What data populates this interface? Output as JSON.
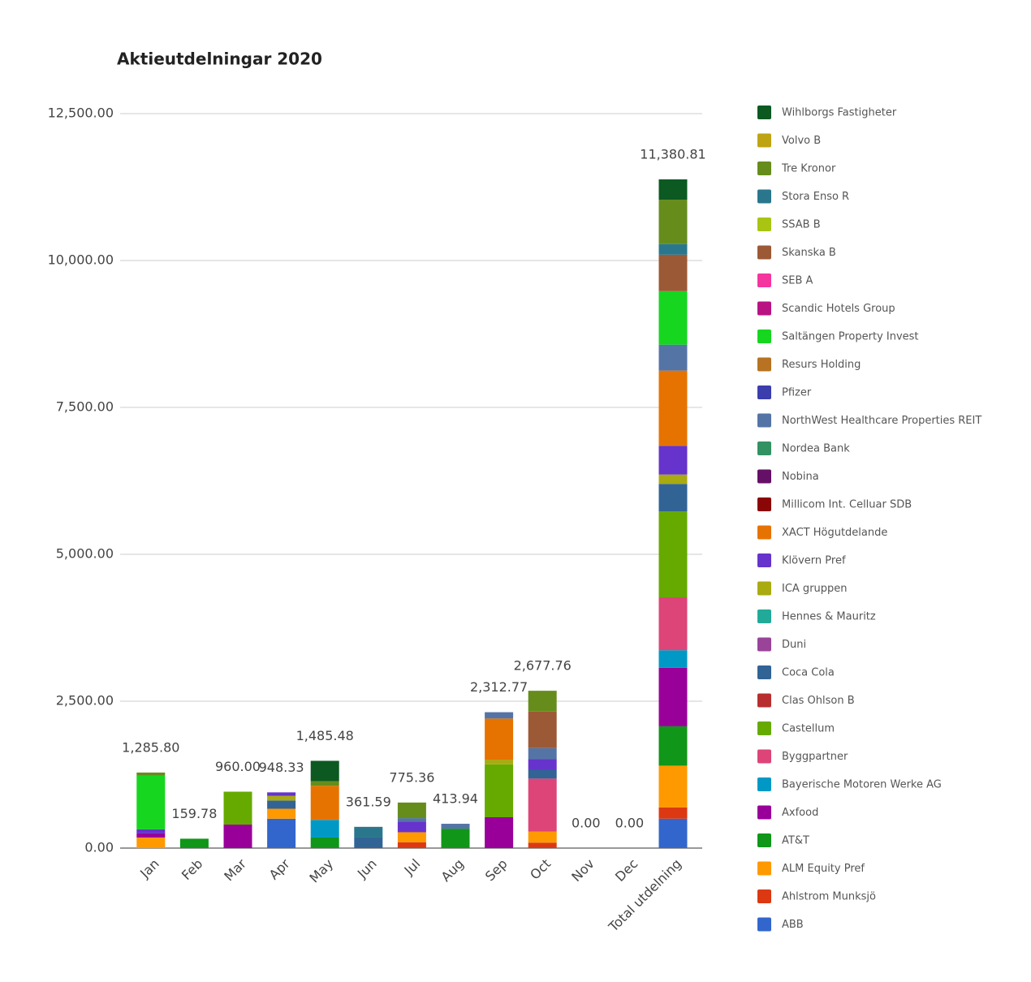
{
  "chart_data": {
    "type": "stacked_bar",
    "title": "Aktieutdelningar 2020",
    "categories": [
      "Jan",
      "Feb",
      "Mar",
      "Apr",
      "May",
      "Jun",
      "Jul",
      "Aug",
      "Sep",
      "Oct",
      "Nov",
      "Dec",
      "Total utdelning"
    ],
    "ylim": [
      0,
      12500
    ],
    "yticks": [
      {
        "value": 0,
        "label": "0.00"
      },
      {
        "value": 2500,
        "label": "2,500.00"
      },
      {
        "value": 5000,
        "label": "5,000.00"
      },
      {
        "value": 7500,
        "label": "7,500.00"
      },
      {
        "value": 10000,
        "label": "10,000.00"
      },
      {
        "value": 12500,
        "label": "12,500.00"
      }
    ],
    "grid": true,
    "legend": "right",
    "totals": [
      1285.8,
      159.78,
      960,
      948.33,
      1485.48,
      361.59,
      775.36,
      413.94,
      2312.77,
      2677.76,
      0,
      0,
      11380.81
    ],
    "total_labels": [
      "1,285.80",
      "159.78",
      "960.00",
      "948.33",
      "1,485.48",
      "361.59",
      "775.36",
      "413.94",
      "2,312.77",
      "2,677.76",
      "0.00",
      "0.00",
      "11,380.81"
    ],
    "series": [
      {
        "name": "ABB",
        "color": "#3366cc",
        "values": [
          0,
          0,
          0,
          500,
          0,
          0,
          0,
          0,
          0,
          0,
          0,
          0,
          500
        ]
      },
      {
        "name": "Ahlstrom Munksjö",
        "color": "#dc3912",
        "values": [
          0,
          0,
          0,
          0,
          0,
          0,
          100,
          0,
          0,
          93,
          0,
          0,
          193
        ]
      },
      {
        "name": "ALM Equity Pref",
        "color": "#ff9900",
        "values": [
          180,
          0,
          0,
          170,
          0,
          0,
          170,
          0,
          0,
          190,
          0,
          0,
          710
        ]
      },
      {
        "name": "AT&T",
        "color": "#109618",
        "values": [
          0,
          159.78,
          0,
          0,
          180,
          0,
          0,
          330,
          0,
          0,
          0,
          0,
          669.78
        ]
      },
      {
        "name": "Axfood",
        "color": "#990099",
        "values": [
          70,
          0,
          400,
          0,
          0,
          0,
          0,
          0,
          525,
          0,
          0,
          0,
          995
        ]
      },
      {
        "name": "Bayerische Motoren Werke AG",
        "color": "#0099c6",
        "values": [
          0,
          0,
          0,
          0,
          300,
          0,
          0,
          0,
          0,
          0,
          0,
          0,
          300
        ]
      },
      {
        "name": "Byggpartner",
        "color": "#dd4477",
        "values": [
          0,
          0,
          0,
          0,
          0,
          0,
          0,
          0,
          0,
          900,
          0,
          0,
          900
        ]
      },
      {
        "name": "Castellum",
        "color": "#66aa00",
        "values": [
          0,
          0,
          560,
          0,
          0,
          0,
          0,
          0,
          900,
          0,
          0,
          0,
          1460
        ]
      },
      {
        "name": "Clas Ohlson B",
        "color": "#b82e2e",
        "values": [
          0,
          0,
          0,
          0,
          0,
          0,
          0,
          0,
          0,
          0,
          0,
          0,
          0
        ]
      },
      {
        "name": "Coca Cola",
        "color": "#316395",
        "values": [
          0,
          0,
          0,
          140,
          0,
          180,
          0,
          0,
          0,
          150,
          0,
          0,
          470
        ]
      },
      {
        "name": "Duni",
        "color": "#994499",
        "values": [
          0,
          0,
          0,
          0,
          0,
          0,
          0,
          0,
          0,
          0,
          0,
          0,
          0
        ]
      },
      {
        "name": "Hennes & Mauritz",
        "color": "#22aa99",
        "values": [
          0,
          0,
          0,
          0,
          0,
          0,
          0,
          0,
          0,
          0,
          0,
          0,
          0
        ]
      },
      {
        "name": "ICA gruppen",
        "color": "#aaaa11",
        "values": [
          0,
          0,
          0,
          80,
          0,
          0,
          0,
          0,
          80,
          0,
          0,
          0,
          160
        ]
      },
      {
        "name": "Klövern Pref",
        "color": "#6633cc",
        "values": [
          70,
          0,
          0,
          58.33,
          0,
          0,
          180,
          0,
          0,
          180,
          0,
          0,
          488.33
        ]
      },
      {
        "name": "XACT Högutdelande",
        "color": "#e67300",
        "values": [
          0,
          0,
          0,
          0,
          580,
          0,
          0,
          0,
          700,
          0,
          0,
          0,
          1280
        ]
      },
      {
        "name": "Millicom Int. Celluar SDB",
        "color": "#8b0707",
        "values": [
          0,
          0,
          0,
          0,
          0,
          0,
          0,
          0,
          0,
          0,
          0,
          0,
          0
        ]
      },
      {
        "name": "Nobina",
        "color": "#651067",
        "values": [
          0,
          0,
          0,
          0,
          0,
          0,
          0,
          0,
          0,
          0,
          0,
          0,
          0
        ]
      },
      {
        "name": "Nordea Bank",
        "color": "#329262",
        "values": [
          0,
          0,
          0,
          0,
          0,
          0,
          0,
          0,
          0,
          0,
          0,
          0,
          0
        ]
      },
      {
        "name": "NorthWest Healthcare Properties REIT",
        "color": "#5574a6",
        "values": [
          0,
          0,
          0,
          0,
          0,
          0,
          60,
          83.94,
          107.77,
          190,
          0,
          0,
          441.71
        ]
      },
      {
        "name": "Pfizer",
        "color": "#3b3eac",
        "values": [
          0,
          0,
          0,
          0,
          0,
          0,
          0,
          0,
          0,
          0,
          0,
          0,
          0
        ]
      },
      {
        "name": "Resurs Holding",
        "color": "#b77322",
        "values": [
          0,
          0,
          0,
          0,
          0,
          0,
          0,
          0,
          0,
          0,
          0,
          0,
          0
        ]
      },
      {
        "name": "Saltängen Property Invest",
        "color": "#16d620",
        "values": [
          910.8,
          0,
          0,
          0,
          0,
          0,
          0,
          0,
          0,
          0,
          0,
          0,
          910.8
        ]
      },
      {
        "name": "Scandic Hotels Group",
        "color": "#b91383",
        "values": [
          0,
          0,
          0,
          0,
          0,
          0,
          0,
          0,
          0,
          0,
          0,
          0,
          0
        ]
      },
      {
        "name": "SEB A",
        "color": "#f4359e",
        "values": [
          0,
          0,
          0,
          0,
          0,
          0,
          0,
          0,
          0,
          0,
          0,
          0,
          0
        ]
      },
      {
        "name": "Skanska B",
        "color": "#9c5935",
        "values": [
          0,
          0,
          0,
          0,
          0,
          0,
          0,
          0,
          0,
          620,
          0,
          0,
          620
        ]
      },
      {
        "name": "SSAB B",
        "color": "#a9c413",
        "values": [
          0,
          0,
          0,
          0,
          0,
          0,
          0,
          0,
          0,
          0,
          0,
          0,
          0
        ]
      },
      {
        "name": "Stora Enso R",
        "color": "#2a778d",
        "values": [
          0,
          0,
          0,
          0,
          0,
          181.59,
          0,
          0,
          0,
          0,
          0,
          0,
          181.59
        ]
      },
      {
        "name": "Tre Kronor",
        "color": "#668d1c",
        "values": [
          55,
          0,
          0,
          0,
          80,
          0,
          265.36,
          0,
          0,
          354.76,
          0,
          0,
          755.12
        ]
      },
      {
        "name": "Volvo B",
        "color": "#bea413",
        "values": [
          0,
          0,
          0,
          0,
          0,
          0,
          0,
          0,
          0,
          0,
          0,
          0,
          0
        ]
      },
      {
        "name": "Wihlborgs Fastigheter",
        "color": "#0c5922",
        "values": [
          0,
          0,
          0,
          0,
          345.48,
          0,
          0,
          0,
          0,
          0,
          0,
          0,
          345.48
        ]
      }
    ]
  }
}
